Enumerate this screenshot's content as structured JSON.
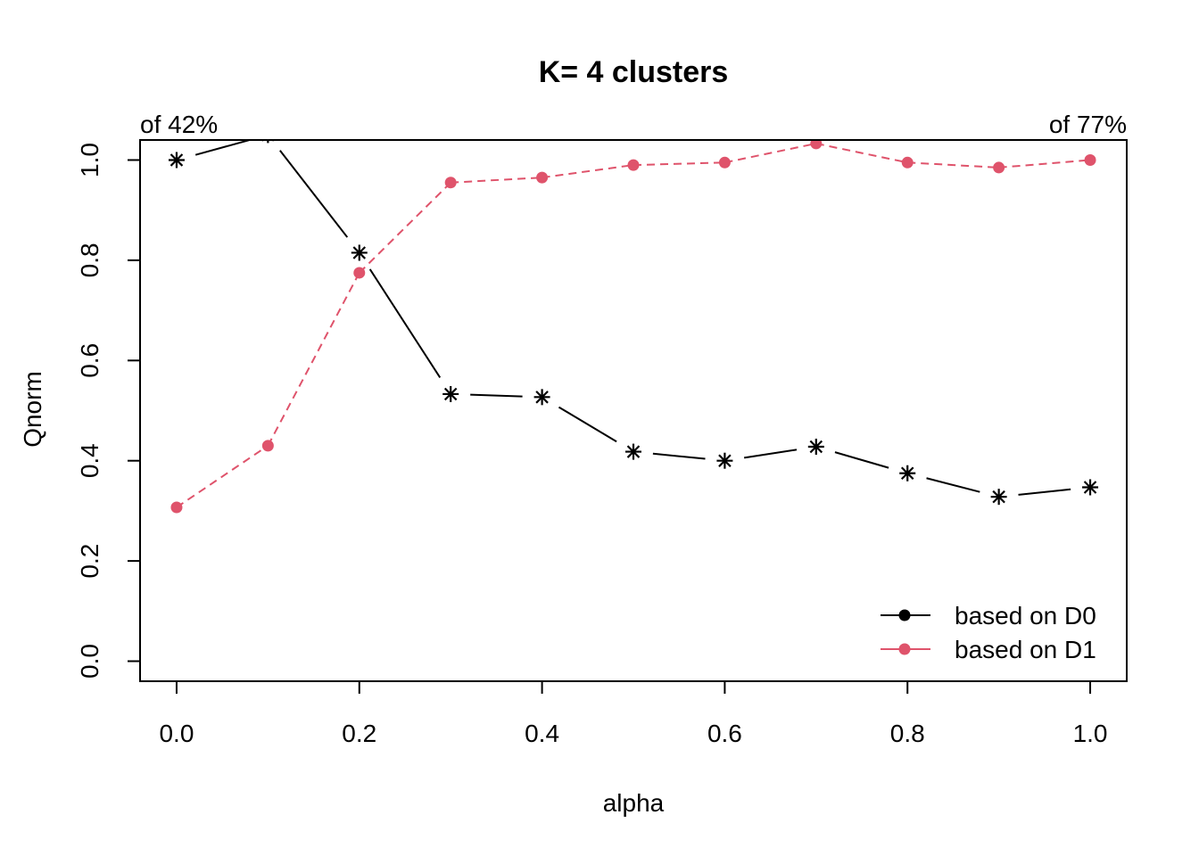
{
  "chart_data": {
    "type": "line",
    "title": "K= 4 clusters",
    "xlabel": "alpha",
    "ylabel": "Qnorm",
    "xlim": [
      -0.04,
      1.04
    ],
    "ylim": [
      -0.04,
      1.04
    ],
    "x_ticks": [
      "0.0",
      "0.2",
      "0.4",
      "0.6",
      "0.8",
      "1.0"
    ],
    "y_ticks": [
      "0.0",
      "0.2",
      "0.4",
      "0.6",
      "0.8",
      "1.0"
    ],
    "corner_labels": {
      "left": "of 42%",
      "right": "of 77%"
    },
    "x": [
      0.0,
      0.1,
      0.2,
      0.3,
      0.4,
      0.5,
      0.6,
      0.7,
      0.8,
      0.9,
      1.0
    ],
    "series": [
      {
        "name": "based on D0",
        "color": "#000000",
        "line": "solid",
        "marker": "asterisk",
        "values": [
          1.0,
          1.05,
          0.815,
          0.533,
          0.527,
          0.418,
          0.4,
          0.428,
          0.375,
          0.328,
          0.347
        ]
      },
      {
        "name": "based on D1",
        "color": "#DF536B",
        "line": "dashed",
        "marker": "dot",
        "values": [
          0.307,
          0.43,
          0.775,
          0.955,
          0.965,
          0.99,
          0.995,
          1.033,
          0.995,
          0.985,
          1.0
        ]
      }
    ],
    "legend": {
      "position": "bottom-right",
      "entries": [
        {
          "label": "based on D0",
          "color": "#000000",
          "line": "solid"
        },
        {
          "label": "based on D1",
          "color": "#DF536B",
          "line": "solid"
        }
      ]
    },
    "grid": false
  }
}
